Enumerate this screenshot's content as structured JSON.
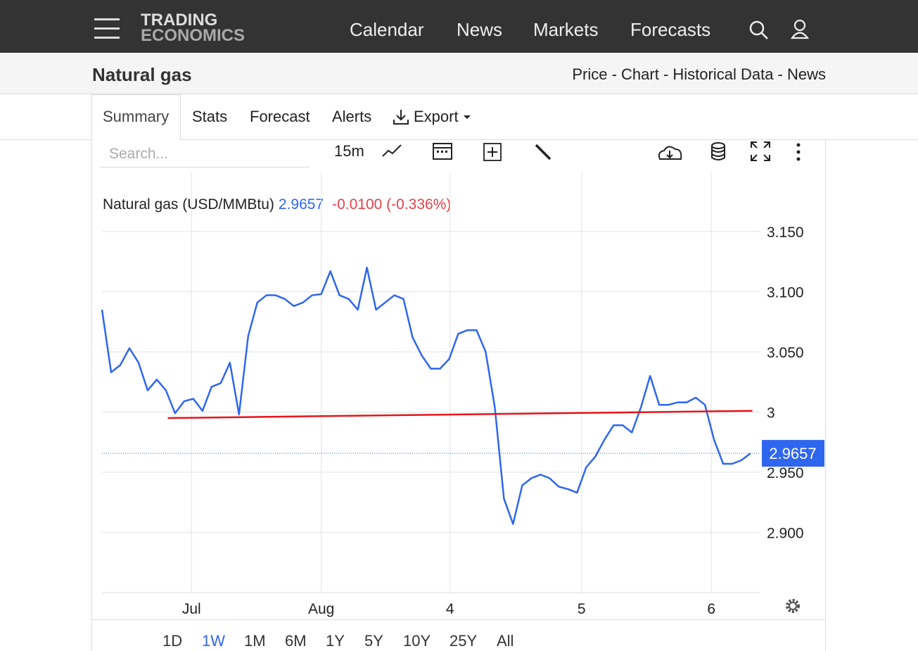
{
  "header": {
    "logo_top": "TRADING",
    "logo_bottom": "ECONOMICS",
    "nav": [
      "Calendar",
      "News",
      "Markets",
      "Forecasts"
    ]
  },
  "page": {
    "title": "Natural gas",
    "breadcrumb": "Price - Chart - Historical Data - News"
  },
  "tabs": [
    {
      "label": "Summary",
      "active": true
    },
    {
      "label": "Stats"
    },
    {
      "label": "Forecast"
    },
    {
      "label": "Alerts"
    },
    {
      "label": "Export"
    }
  ],
  "toolbar": {
    "search_placeholder": "Search...",
    "interval": "15m"
  },
  "ranges": [
    {
      "label": "1D"
    },
    {
      "label": "1W",
      "active": true
    },
    {
      "label": "1M"
    },
    {
      "label": "6M"
    },
    {
      "label": "1Y"
    },
    {
      "label": "5Y"
    },
    {
      "label": "10Y"
    },
    {
      "label": "25Y"
    },
    {
      "label": "All"
    }
  ],
  "chart_data": {
    "type": "line",
    "title": "Natural gas (USD/MMBtu)",
    "price": 2.9657,
    "change_label": "-0.0100 (-0.336%)",
    "x": [
      0,
      1,
      2,
      3,
      4,
      5,
      6,
      7,
      8,
      9,
      10,
      11,
      12,
      13,
      14,
      15,
      16,
      17,
      18,
      19,
      20,
      21,
      22,
      23,
      24,
      25,
      26,
      27,
      28,
      29,
      30,
      31,
      32,
      33,
      34,
      35,
      36,
      37,
      38,
      39,
      40,
      41,
      42,
      43,
      44,
      45,
      46,
      47,
      48,
      49,
      50,
      51,
      52,
      53,
      54,
      55,
      56,
      57,
      58,
      59,
      60,
      61,
      62,
      63,
      64,
      65,
      66,
      67,
      68,
      69,
      70,
      71
    ],
    "series": [
      {
        "name": "Natural gas",
        "color": "#2f66f0",
        "values": [
          3.085,
          3.033,
          3.039,
          3.053,
          3.041,
          3.018,
          3.027,
          3.018,
          2.999,
          3.009,
          3.011,
          3.001,
          3.021,
          3.024,
          3.041,
          2.998,
          3.063,
          3.091,
          3.097,
          3.097,
          3.094,
          3.088,
          3.091,
          3.097,
          3.098,
          3.117,
          3.097,
          3.094,
          3.085,
          3.12,
          3.085,
          3.091,
          3.097,
          3.094,
          3.062,
          3.047,
          3.036,
          3.036,
          3.044,
          3.065,
          3.068,
          3.068,
          3.05,
          3.004,
          2.928,
          2.907,
          2.939,
          2.945,
          2.948,
          2.945,
          2.938,
          2.936,
          2.933,
          2.954,
          2.963,
          2.977,
          2.989,
          2.989,
          2.983,
          3.004,
          3.03,
          3.006,
          3.006,
          3.008,
          3.008,
          3.012,
          3.006,
          2.977,
          2.957,
          2.957,
          2.96,
          2.9657
        ]
      }
    ],
    "trendline": {
      "x": [
        7.2,
        71.2
      ],
      "values": [
        2.995,
        3.001
      ],
      "color": "#e8141b"
    },
    "xlim": [
      0,
      72
    ],
    "xticks": [
      {
        "value": 9.8,
        "label": "Jul"
      },
      {
        "value": 24,
        "label": "Aug"
      },
      {
        "value": 38.1,
        "label": "4"
      },
      {
        "value": 52.5,
        "label": "5"
      },
      {
        "value": 66.7,
        "label": "6"
      }
    ],
    "ylim": [
      2.85,
      3.2
    ],
    "yticks": [
      {
        "value": 2.9,
        "label": "2.900"
      },
      {
        "value": 2.95,
        "label": "2.950"
      },
      3,
      {
        "value": 3.05,
        "label": "3.050"
      },
      {
        "value": 3.1,
        "label": "3.100"
      },
      {
        "value": 3.15,
        "label": "3.150"
      }
    ],
    "grid": true
  }
}
